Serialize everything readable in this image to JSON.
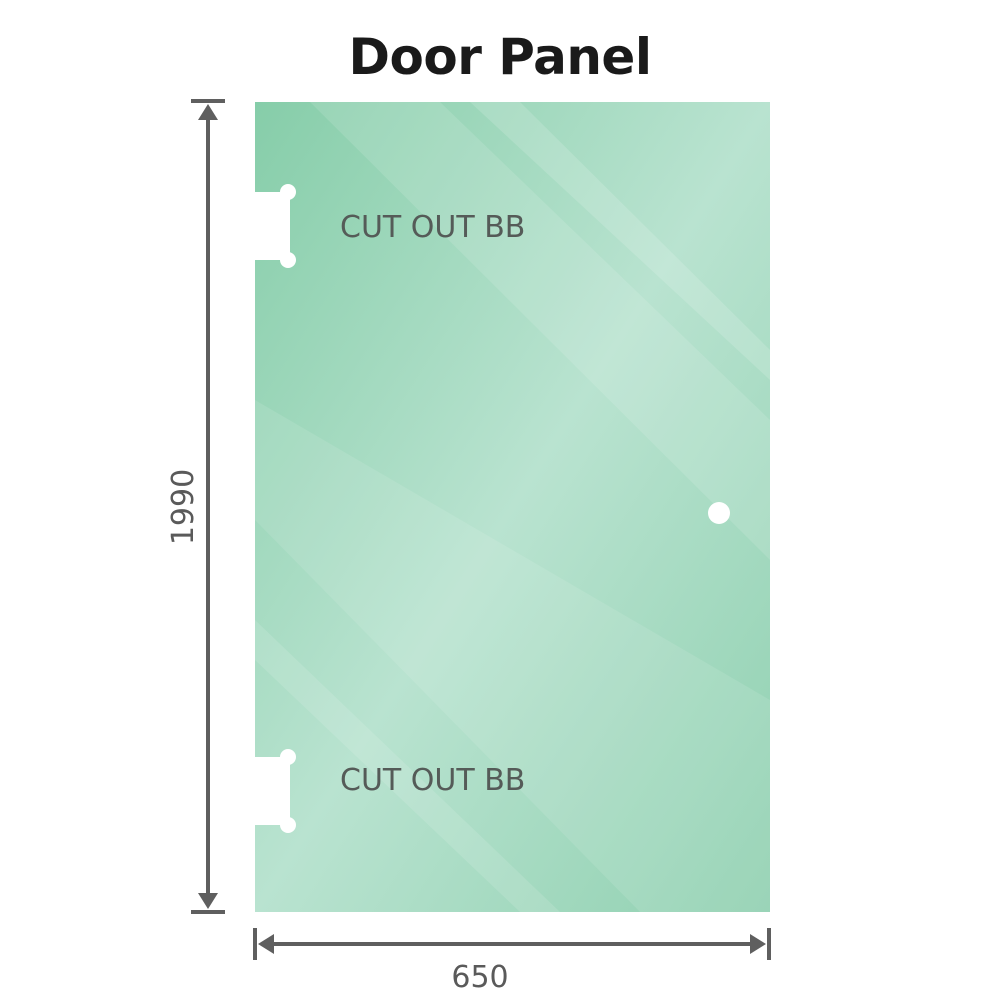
{
  "title": "Door Panel",
  "cutouts": [
    {
      "label": "CUT OUT BB"
    },
    {
      "label": "CUT OUT BB"
    }
  ],
  "dimensions": {
    "height": "1990",
    "width": "650"
  },
  "colors": {
    "glass": "#8fd0b0",
    "glass_light": "#bce5d2",
    "dimension_line": "#5f5f5f"
  }
}
